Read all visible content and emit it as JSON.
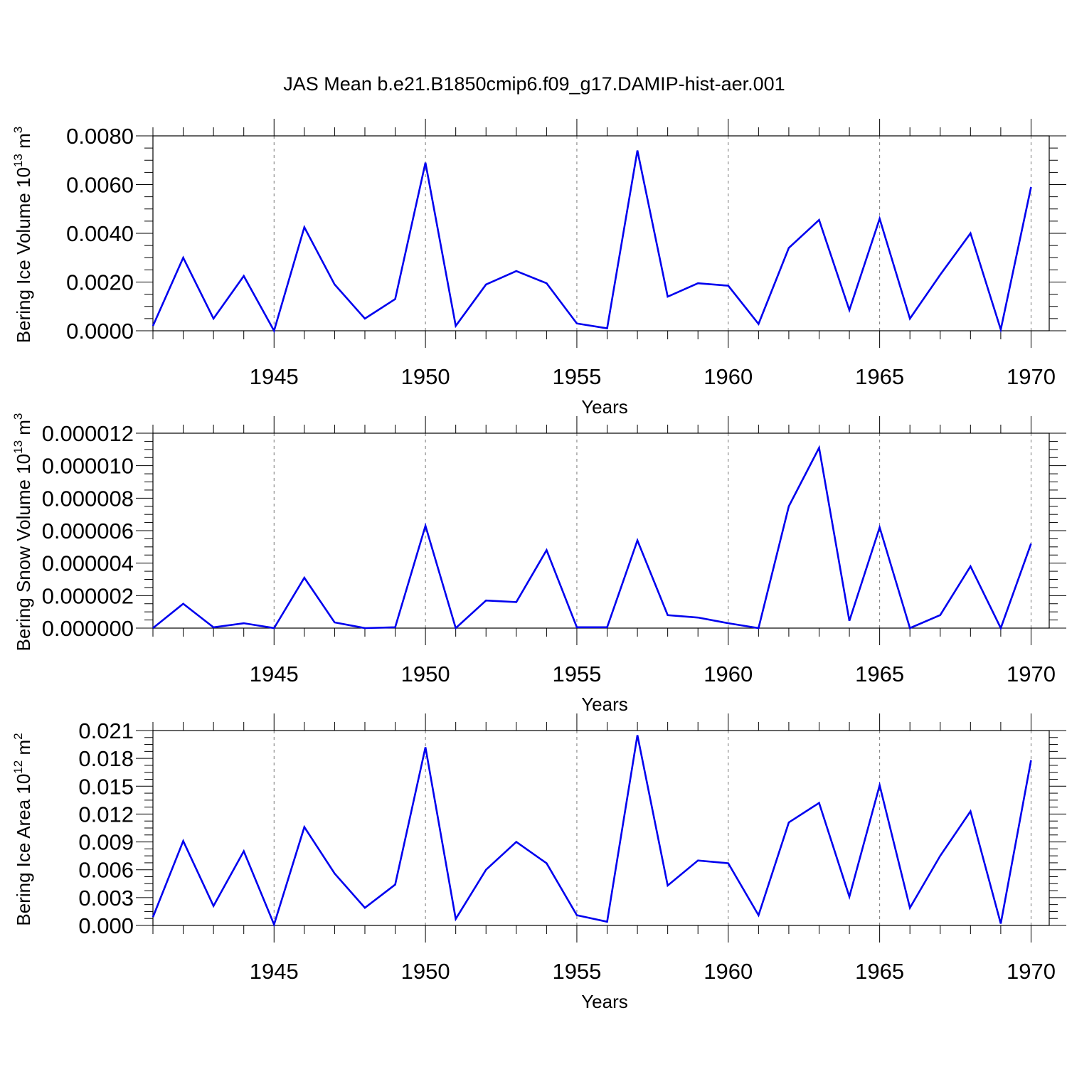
{
  "figure_title": "JAS Mean b.e21.B1850cmip6.f09_g17.DAMIP-hist-aer.001",
  "colors": {
    "line": "#0000ee",
    "axis": "#000000",
    "grid": "#777777",
    "background": "#ffffff"
  },
  "chart_data": [
    {
      "type": "line",
      "title": "",
      "xlabel": "Years",
      "ylabel": {
        "text": "Bering Ice Volume 10",
        "exp": "13",
        "unit_text": " m",
        "unit_exp": "3"
      },
      "xlim": [
        1941,
        1970.6
      ],
      "ylim": [
        0.0,
        0.008
      ],
      "xticks": [
        1945,
        1950,
        1955,
        1960,
        1965,
        1970
      ],
      "xtick_labels": [
        "1945",
        "1950",
        "1955",
        "1960",
        "1965",
        "1970"
      ],
      "yticks": [
        0.0,
        0.002,
        0.004,
        0.006,
        0.008
      ],
      "ytick_labels": [
        "0.0000",
        "0.0020",
        "0.0040",
        "0.0060",
        "0.0080"
      ],
      "grid": "dashed vertical at labelled years",
      "x": [
        1941,
        1942,
        1943,
        1944,
        1945,
        1946,
        1947,
        1948,
        1949,
        1950,
        1951,
        1952,
        1953,
        1954,
        1955,
        1956,
        1957,
        1958,
        1959,
        1960,
        1961,
        1962,
        1963,
        1964,
        1965,
        1966,
        1967,
        1968,
        1969,
        1970
      ],
      "series": [
        {
          "values": [
            0.0002,
            0.003,
            0.0005,
            0.00225,
            0.0,
            0.00425,
            0.0019,
            0.0005,
            0.0013,
            0.0069,
            0.0002,
            0.0019,
            0.00245,
            0.00195,
            0.0003,
            0.0001,
            0.0074,
            0.0014,
            0.00195,
            0.00185,
            0.00028,
            0.0034,
            0.00455,
            0.00085,
            0.0046,
            0.0005,
            0.0023,
            0.004,
            5e-05,
            0.0059
          ]
        }
      ]
    },
    {
      "type": "line",
      "title": "",
      "xlabel": "Years",
      "ylabel": {
        "text": "Bering Snow Volume 10",
        "exp": "13",
        "unit_text": " m",
        "unit_exp": "3"
      },
      "xlim": [
        1941,
        1970.6
      ],
      "ylim": [
        0.0,
        1.2e-05
      ],
      "xticks": [
        1945,
        1950,
        1955,
        1960,
        1965,
        1970
      ],
      "xtick_labels": [
        "1945",
        "1950",
        "1955",
        "1960",
        "1965",
        "1970"
      ],
      "yticks": [
        0.0,
        2e-06,
        4e-06,
        6e-06,
        8e-06,
        1e-05,
        1.2e-05
      ],
      "ytick_labels": [
        "0.000000",
        "0.000002",
        "0.000004",
        "0.000006",
        "0.000008",
        "0.000010",
        "0.000012"
      ],
      "grid": "dashed vertical at labelled years",
      "x": [
        1941,
        1942,
        1943,
        1944,
        1945,
        1946,
        1947,
        1948,
        1949,
        1950,
        1951,
        1952,
        1953,
        1954,
        1955,
        1956,
        1957,
        1958,
        1959,
        1960,
        1961,
        1962,
        1963,
        1964,
        1965,
        1966,
        1967,
        1968,
        1969,
        1970
      ],
      "series": [
        {
          "values": [
            0.0,
            1.5e-06,
            5e-08,
            3e-07,
            0.0,
            3.1e-06,
            3.5e-07,
            0.0,
            5e-08,
            6.3e-06,
            0.0,
            1.7e-06,
            1.6e-06,
            4.8e-06,
            5e-08,
            5e-08,
            5.4e-06,
            8e-07,
            6.5e-07,
            3e-07,
            0.0,
            7.5e-06,
            1.11e-05,
            4.5e-07,
            6.2e-06,
            0.0,
            8e-07,
            3.8e-06,
            0.0,
            5.2e-06
          ]
        }
      ]
    },
    {
      "type": "line",
      "title": "",
      "xlabel": "Years",
      "ylabel": {
        "text": "Bering Ice Area 10",
        "exp": "12",
        "unit_text": " m",
        "unit_exp": "2"
      },
      "xlim": [
        1941,
        1970.6
      ],
      "ylim": [
        0.0,
        0.021
      ],
      "xticks": [
        1945,
        1950,
        1955,
        1960,
        1965,
        1970
      ],
      "xtick_labels": [
        "1945",
        "1950",
        "1955",
        "1960",
        "1965",
        "1970"
      ],
      "yticks": [
        0.0,
        0.003,
        0.006,
        0.009,
        0.012,
        0.015,
        0.018,
        0.021
      ],
      "ytick_labels": [
        "0.000",
        "0.003",
        "0.006",
        "0.009",
        "0.012",
        "0.015",
        "0.018",
        "0.021"
      ],
      "grid": "dashed vertical at labelled years",
      "x": [
        1941,
        1942,
        1943,
        1944,
        1945,
        1946,
        1947,
        1948,
        1949,
        1950,
        1951,
        1952,
        1953,
        1954,
        1955,
        1956,
        1957,
        1958,
        1959,
        1960,
        1961,
        1962,
        1963,
        1964,
        1965,
        1966,
        1967,
        1968,
        1969,
        1970
      ],
      "series": [
        {
          "values": [
            0.0009,
            0.0091,
            0.0021,
            0.008,
            0.0001,
            0.0106,
            0.0056,
            0.0019,
            0.0044,
            0.0192,
            0.0007,
            0.006,
            0.009,
            0.0067,
            0.0011,
            0.0004,
            0.0205,
            0.0043,
            0.007,
            0.0067,
            0.0011,
            0.0111,
            0.0132,
            0.0031,
            0.0151,
            0.0019,
            0.0075,
            0.0123,
            0.0002,
            0.0178
          ]
        }
      ]
    }
  ]
}
